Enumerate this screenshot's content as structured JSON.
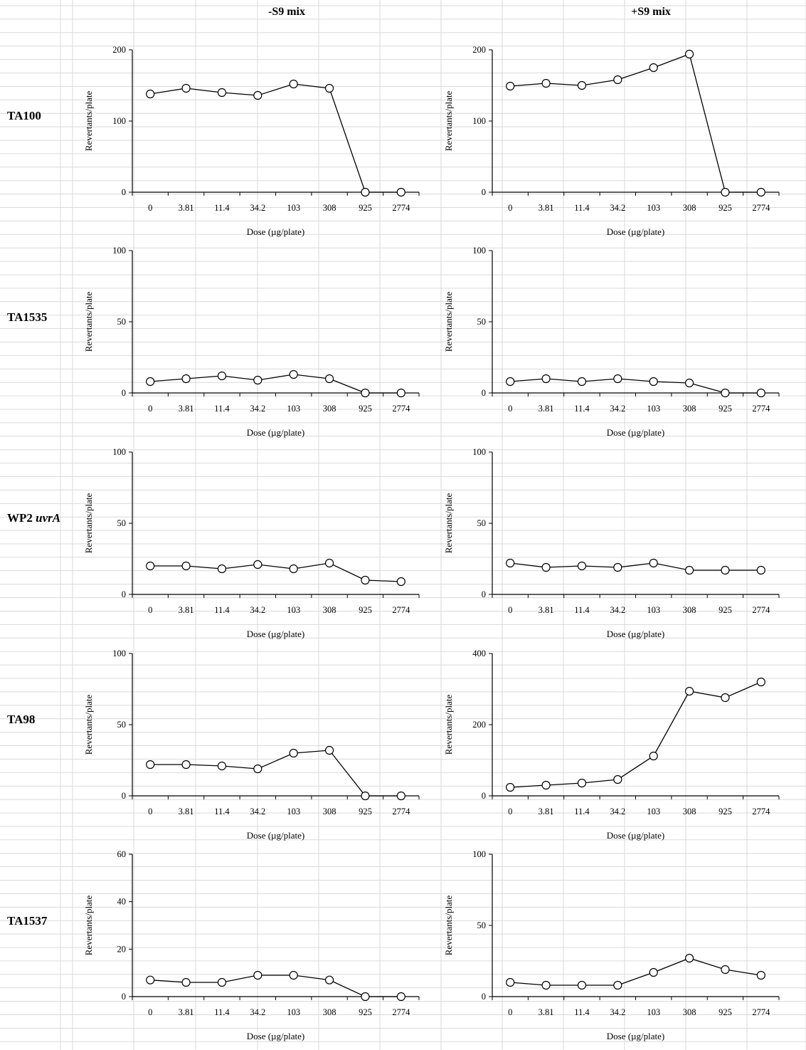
{
  "column_headers": {
    "minus_s9": "-S9 mix",
    "plus_s9": "+S9 mix"
  },
  "row_labels": [
    {
      "main": "TA100",
      "italic": ""
    },
    {
      "main": "TA1535",
      "italic": ""
    },
    {
      "main": "WP2 ",
      "italic": "uvrA"
    },
    {
      "main": "TA98",
      "italic": ""
    },
    {
      "main": "TA1537",
      "italic": ""
    }
  ],
  "colors": {
    "gridline": "#d9d9d9",
    "line": "#000000",
    "marker_fill": "#ffffff"
  },
  "chart_data": [
    {
      "id": "ta100-minus",
      "type": "line",
      "row": 0,
      "col": 0,
      "categories": [
        "0",
        "3.81",
        "11.4",
        "34.2",
        "103",
        "308",
        "925",
        "2774"
      ],
      "values": [
        138,
        146,
        140,
        136,
        152,
        146,
        0,
        0
      ],
      "ylim": [
        0,
        200
      ],
      "yticks": [
        0,
        100,
        200
      ],
      "xlabel": "Dose (µg/plate)",
      "ylabel": "Revertants/plate"
    },
    {
      "id": "ta100-plus",
      "type": "line",
      "row": 0,
      "col": 1,
      "categories": [
        "0",
        "3.81",
        "11.4",
        "34.2",
        "103",
        "308",
        "925",
        "2774"
      ],
      "values": [
        149,
        153,
        150,
        158,
        175,
        194,
        0,
        0
      ],
      "ylim": [
        0,
        200
      ],
      "yticks": [
        0,
        100,
        200
      ],
      "xlabel": "Dose (µg/plate)",
      "ylabel": "Revertants/plate"
    },
    {
      "id": "ta1535-minus",
      "type": "line",
      "row": 1,
      "col": 0,
      "categories": [
        "0",
        "3.81",
        "11.4",
        "34.2",
        "103",
        "308",
        "925",
        "2774"
      ],
      "values": [
        8,
        10,
        12,
        9,
        13,
        10,
        0,
        0
      ],
      "ylim": [
        0,
        100
      ],
      "yticks": [
        0,
        50,
        100
      ],
      "xlabel": "Dose (µg/plate)",
      "ylabel": "Revertants/plate"
    },
    {
      "id": "ta1535-plus",
      "type": "line",
      "row": 1,
      "col": 1,
      "categories": [
        "0",
        "3.81",
        "11.4",
        "34.2",
        "103",
        "308",
        "925",
        "2774"
      ],
      "values": [
        8,
        10,
        8,
        10,
        8,
        7,
        0,
        0
      ],
      "ylim": [
        0,
        100
      ],
      "yticks": [
        0,
        50,
        100
      ],
      "xlabel": "Dose (µg/plate)",
      "ylabel": "Revertants/plate"
    },
    {
      "id": "wp2-minus",
      "type": "line",
      "row": 2,
      "col": 0,
      "categories": [
        "0",
        "3.81",
        "11.4",
        "34.2",
        "103",
        "308",
        "925",
        "2774"
      ],
      "values": [
        20,
        20,
        18,
        21,
        18,
        22,
        10,
        9
      ],
      "ylim": [
        0,
        100
      ],
      "yticks": [
        0,
        50,
        100
      ],
      "xlabel": "Dose (µg/plate)",
      "ylabel": "Revertants/plate"
    },
    {
      "id": "wp2-plus",
      "type": "line",
      "row": 2,
      "col": 1,
      "categories": [
        "0",
        "3.81",
        "11.4",
        "34.2",
        "103",
        "308",
        "925",
        "2774"
      ],
      "values": [
        22,
        19,
        20,
        19,
        22,
        17,
        17,
        17
      ],
      "ylim": [
        0,
        100
      ],
      "yticks": [
        0,
        50,
        100
      ],
      "xlabel": "Dose (µg/plate)",
      "ylabel": "Revertants/plate"
    },
    {
      "id": "ta98-minus",
      "type": "line",
      "row": 3,
      "col": 0,
      "categories": [
        "0",
        "3.81",
        "11.4",
        "34.2",
        "103",
        "308",
        "925",
        "2774"
      ],
      "values": [
        22,
        22,
        21,
        19,
        30,
        32,
        0,
        0
      ],
      "ylim": [
        0,
        100
      ],
      "yticks": [
        0,
        50,
        100
      ],
      "xlabel": "Dose (µg/plate)",
      "ylabel": "Revertants/plate"
    },
    {
      "id": "ta98-plus",
      "type": "line",
      "row": 3,
      "col": 1,
      "categories": [
        "0",
        "3.81",
        "11.4",
        "34.2",
        "103",
        "308",
        "925",
        "2774"
      ],
      "values": [
        24,
        30,
        36,
        46,
        112,
        294,
        276,
        320
      ],
      "ylim": [
        0,
        400
      ],
      "yticks": [
        0,
        200,
        400
      ],
      "xlabel": "Dose (µg/plate)",
      "ylabel": "Revertants/plate"
    },
    {
      "id": "ta1537-minus",
      "type": "line",
      "row": 4,
      "col": 0,
      "categories": [
        "0",
        "3.81",
        "11.4",
        "34.2",
        "103",
        "308",
        "925",
        "2774"
      ],
      "values": [
        7,
        6,
        6,
        9,
        9,
        7,
        0,
        0
      ],
      "ylim": [
        0,
        60
      ],
      "yticks": [
        0,
        20,
        40,
        60
      ],
      "xlabel": "Dose (µg/plate)",
      "ylabel": "Revertants/plate"
    },
    {
      "id": "ta1537-plus",
      "type": "line",
      "row": 4,
      "col": 1,
      "categories": [
        "0",
        "3.81",
        "11.4",
        "34.2",
        "103",
        "308",
        "925",
        "2774"
      ],
      "values": [
        10,
        8,
        8,
        8,
        17,
        27,
        19,
        15
      ],
      "ylim": [
        0,
        100
      ],
      "yticks": [
        0,
        50,
        100
      ],
      "xlabel": "Dose (µg/plate)",
      "ylabel": "Revertants/plate"
    }
  ]
}
